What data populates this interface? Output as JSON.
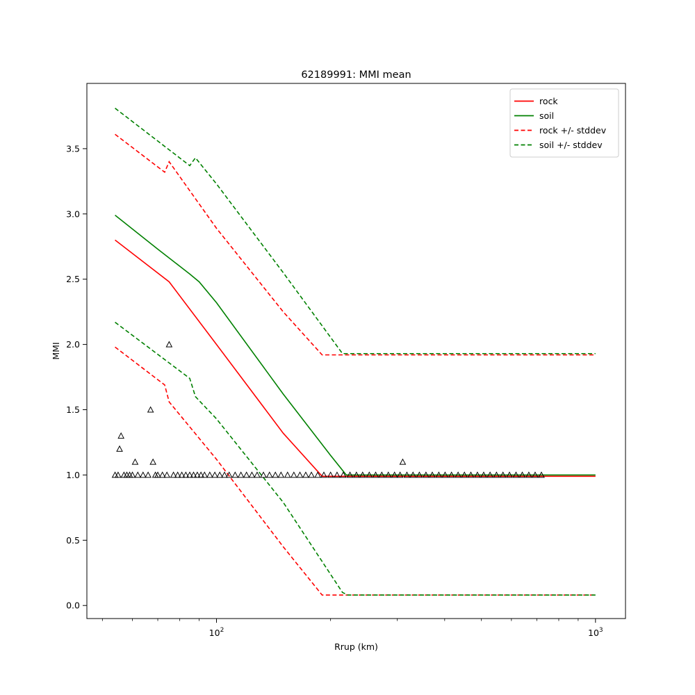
{
  "chart_data": {
    "type": "line",
    "title": "62189991: MMI mean",
    "xlabel": "Rrup (km)",
    "ylabel": "MMI",
    "xscale": "log",
    "xlim": [
      45.5,
      1200
    ],
    "ylim": [
      -0.1,
      4.0
    ],
    "x_ticks": [
      {
        "value": 100,
        "base": "10",
        "exp": "2"
      },
      {
        "value": 1000,
        "base": "10",
        "exp": "3"
      }
    ],
    "y_ticks": [
      "0.0",
      "0.5",
      "1.0",
      "1.5",
      "2.0",
      "2.5",
      "3.0",
      "3.5"
    ],
    "legend_position": "top-right",
    "series": [
      {
        "name": "rock",
        "color": "#ff0000",
        "dash": false,
        "points": [
          [
            54,
            2.8
          ],
          [
            75,
            2.48
          ],
          [
            100,
            2.0
          ],
          [
            150,
            1.32
          ],
          [
            190,
            0.99
          ],
          [
            1000,
            0.99
          ]
        ]
      },
      {
        "name": "soil",
        "color": "#008000",
        "dash": false,
        "points": [
          [
            54,
            2.99
          ],
          [
            70,
            2.73
          ],
          [
            85,
            2.54
          ],
          [
            90,
            2.48
          ],
          [
            100,
            2.32
          ],
          [
            150,
            1.62
          ],
          [
            200,
            1.15
          ],
          [
            220,
            1.0
          ],
          [
            1000,
            1.0
          ]
        ]
      },
      {
        "name": "rock +/- stddev",
        "color": "#ff0000",
        "dash": true,
        "points": [
          [
            54,
            3.61
          ],
          [
            73,
            3.32
          ],
          [
            75,
            3.4
          ],
          [
            100,
            2.89
          ],
          [
            150,
            2.25
          ],
          [
            190,
            1.92
          ],
          [
            1000,
            1.92
          ]
        ]
      },
      {
        "name": "rock +/- stddev",
        "color": "#ff0000",
        "dash": true,
        "in_legend": false,
        "points": [
          [
            54,
            1.98
          ],
          [
            73,
            1.69
          ],
          [
            75,
            1.56
          ],
          [
            100,
            1.12
          ],
          [
            150,
            0.45
          ],
          [
            190,
            0.08
          ],
          [
            1000,
            0.08
          ]
        ]
      },
      {
        "name": "soil +/- stddev",
        "color": "#008000",
        "dash": true,
        "points": [
          [
            54,
            3.81
          ],
          [
            85,
            3.37
          ],
          [
            88,
            3.43
          ],
          [
            100,
            3.23
          ],
          [
            150,
            2.55
          ],
          [
            215,
            1.93
          ],
          [
            1000,
            1.93
          ]
        ]
      },
      {
        "name": "soil +/- stddev",
        "color": "#008000",
        "dash": true,
        "in_legend": false,
        "points": [
          [
            54,
            2.17
          ],
          [
            85,
            1.74
          ],
          [
            88,
            1.6
          ],
          [
            100,
            1.43
          ],
          [
            150,
            0.79
          ],
          [
            215,
            0.1
          ],
          [
            222,
            0.08
          ],
          [
            1000,
            0.08
          ]
        ]
      }
    ],
    "observations": {
      "marker": "open-triangle",
      "color": "#000000",
      "points": [
        [
          54,
          1.0
        ],
        [
          55,
          1.0
        ],
        [
          55.5,
          1.2
        ],
        [
          56,
          1.3
        ],
        [
          57,
          1.0
        ],
        [
          58,
          1.0
        ],
        [
          59,
          1.0
        ],
        [
          60,
          1.0
        ],
        [
          61,
          1.1
        ],
        [
          62,
          1.0
        ],
        [
          64,
          1.0
        ],
        [
          66,
          1.0
        ],
        [
          67,
          1.5
        ],
        [
          68,
          1.1
        ],
        [
          69,
          1.0
        ],
        [
          70,
          1.0
        ],
        [
          72,
          1.0
        ],
        [
          74,
          1.0
        ],
        [
          75,
          2.0
        ],
        [
          77,
          1.0
        ],
        [
          79,
          1.0
        ],
        [
          81,
          1.0
        ],
        [
          83,
          1.0
        ],
        [
          85,
          1.0
        ],
        [
          87,
          1.0
        ],
        [
          89,
          1.0
        ],
        [
          91,
          1.0
        ],
        [
          93,
          1.0
        ],
        [
          96,
          1.0
        ],
        [
          99,
          1.0
        ],
        [
          102,
          1.0
        ],
        [
          105,
          1.0
        ],
        [
          108,
          1.0
        ],
        [
          112,
          1.0
        ],
        [
          116,
          1.0
        ],
        [
          120,
          1.0
        ],
        [
          124,
          1.0
        ],
        [
          128,
          1.0
        ],
        [
          133,
          1.0
        ],
        [
          138,
          1.0
        ],
        [
          143,
          1.0
        ],
        [
          148,
          1.0
        ],
        [
          154,
          1.0
        ],
        [
          160,
          1.0
        ],
        [
          166,
          1.0
        ],
        [
          172,
          1.0
        ],
        [
          178,
          1.0
        ],
        [
          185,
          1.0
        ],
        [
          192,
          1.0
        ],
        [
          200,
          1.0
        ],
        [
          208,
          1.0
        ],
        [
          216,
          1.0
        ],
        [
          225,
          1.0
        ],
        [
          234,
          1.0
        ],
        [
          243,
          1.0
        ],
        [
          253,
          1.0
        ],
        [
          263,
          1.0
        ],
        [
          273,
          1.0
        ],
        [
          284,
          1.0
        ],
        [
          295,
          1.0
        ],
        [
          305,
          1.0
        ],
        [
          310,
          1.1
        ],
        [
          318,
          1.0
        ],
        [
          330,
          1.0
        ],
        [
          343,
          1.0
        ],
        [
          357,
          1.0
        ],
        [
          371,
          1.0
        ],
        [
          386,
          1.0
        ],
        [
          401,
          1.0
        ],
        [
          417,
          1.0
        ],
        [
          434,
          1.0
        ],
        [
          451,
          1.0
        ],
        [
          469,
          1.0
        ],
        [
          488,
          1.0
        ],
        [
          507,
          1.0
        ],
        [
          527,
          1.0
        ],
        [
          548,
          1.0
        ],
        [
          570,
          1.0
        ],
        [
          593,
          1.0
        ],
        [
          617,
          1.0
        ],
        [
          641,
          1.0
        ],
        [
          667,
          1.0
        ],
        [
          693,
          1.0
        ],
        [
          720,
          1.0
        ]
      ]
    }
  }
}
